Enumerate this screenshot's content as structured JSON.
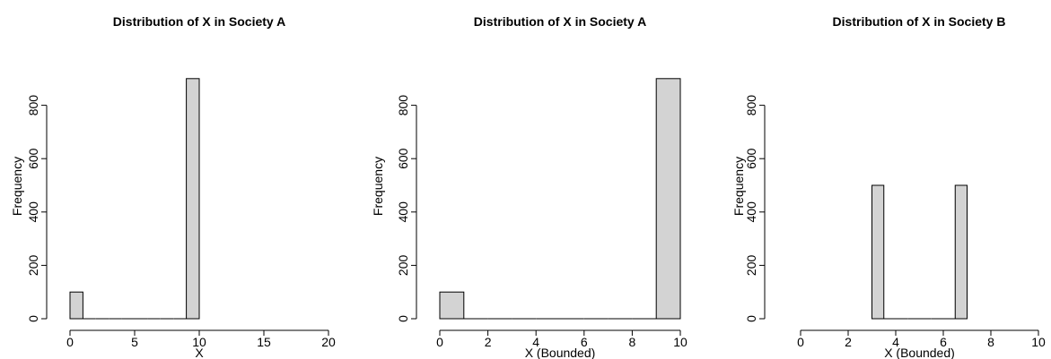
{
  "chart_data": [
    {
      "type": "bar",
      "title": "Distribution of X in Society A",
      "xlabel": "X",
      "ylabel": "Frequency",
      "xlim": [
        0,
        20
      ],
      "ylim": [
        0,
        900
      ],
      "xticks": [
        0,
        5,
        10,
        15,
        20
      ],
      "yticks": [
        0,
        200,
        400,
        600,
        800
      ],
      "bins": [
        {
          "x0": 0,
          "x1": 1,
          "value": 100
        },
        {
          "x0": 1,
          "x1": 2,
          "value": 0
        },
        {
          "x0": 2,
          "x1": 3,
          "value": 0
        },
        {
          "x0": 3,
          "x1": 4,
          "value": 0
        },
        {
          "x0": 4,
          "x1": 5,
          "value": 0
        },
        {
          "x0": 5,
          "x1": 6,
          "value": 0
        },
        {
          "x0": 6,
          "x1": 7,
          "value": 0
        },
        {
          "x0": 7,
          "x1": 8,
          "value": 0
        },
        {
          "x0": 8,
          "x1": 9,
          "value": 0
        },
        {
          "x0": 9,
          "x1": 10,
          "value": 900
        }
      ]
    },
    {
      "type": "bar",
      "title": "Distribution of X in Society A",
      "xlabel": "X (Bounded)",
      "ylabel": "Frequency",
      "xlim": [
        0,
        10
      ],
      "ylim": [
        0,
        900
      ],
      "xticks": [
        0,
        2,
        4,
        6,
        8,
        10
      ],
      "yticks": [
        0,
        200,
        400,
        600,
        800
      ],
      "bins": [
        {
          "x0": 0,
          "x1": 1,
          "value": 100
        },
        {
          "x0": 1,
          "x1": 2,
          "value": 0
        },
        {
          "x0": 2,
          "x1": 3,
          "value": 0
        },
        {
          "x0": 3,
          "x1": 4,
          "value": 0
        },
        {
          "x0": 4,
          "x1": 5,
          "value": 0
        },
        {
          "x0": 5,
          "x1": 6,
          "value": 0
        },
        {
          "x0": 6,
          "x1": 7,
          "value": 0
        },
        {
          "x0": 7,
          "x1": 8,
          "value": 0
        },
        {
          "x0": 8,
          "x1": 9,
          "value": 0
        },
        {
          "x0": 9,
          "x1": 10,
          "value": 900
        }
      ]
    },
    {
      "type": "bar",
      "title": "Distribution of X in Society B",
      "xlabel": "X (Bounded)",
      "ylabel": "Frequency",
      "xlim": [
        0,
        10
      ],
      "ylim": [
        0,
        900
      ],
      "xticks": [
        0,
        2,
        4,
        6,
        8,
        10
      ],
      "yticks": [
        0,
        200,
        400,
        600,
        800
      ],
      "bins": [
        {
          "x0": 3,
          "x1": 3.5,
          "value": 500
        },
        {
          "x0": 3.5,
          "x1": 4,
          "value": 0
        },
        {
          "x0": 4,
          "x1": 4.5,
          "value": 0
        },
        {
          "x0": 4.5,
          "x1": 5,
          "value": 0
        },
        {
          "x0": 5,
          "x1": 5.5,
          "value": 0
        },
        {
          "x0": 5.5,
          "x1": 6,
          "value": 0
        },
        {
          "x0": 6,
          "x1": 6.5,
          "value": 0
        },
        {
          "x0": 6.5,
          "x1": 7,
          "value": 500
        }
      ]
    }
  ]
}
